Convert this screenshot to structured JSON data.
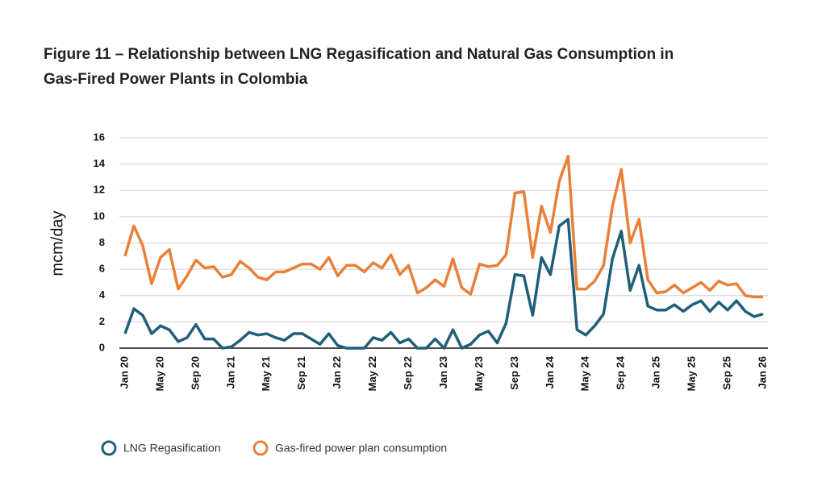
{
  "chart_data": {
    "type": "line",
    "title": "Figure 11 – Relationship between LNG Regasification and Natural Gas Consumption in Gas-Fired Power Plants in Colombia",
    "y_label": "mcm/day",
    "categories": [
      "Jan 20",
      null,
      null,
      null,
      "May 20",
      null,
      null,
      null,
      "Sep 20",
      null,
      null,
      null,
      "Jan 21",
      null,
      null,
      null,
      "May 21",
      null,
      null,
      null,
      "Sep 21",
      null,
      null,
      null,
      "Jan 22",
      null,
      null,
      null,
      "May 22",
      null,
      null,
      null,
      "Sep 22",
      null,
      null,
      null,
      "Jan 23",
      null,
      null,
      null,
      "May 23",
      null,
      null,
      null,
      "Sep 23",
      null,
      null,
      null,
      "Jan 24",
      null,
      null,
      null,
      "May 24",
      null,
      null,
      null,
      "Sep 24",
      null,
      null,
      null,
      "Jan 25",
      null,
      null,
      null,
      "May 25",
      null,
      null,
      null,
      "Sep 25",
      null,
      null,
      null,
      "Jan 26"
    ],
    "series": [
      {
        "name": "LNG Regasification",
        "color": "#1f5f7a",
        "values": [
          1.1,
          3.0,
          2.5,
          1.1,
          1.7,
          1.4,
          0.5,
          0.8,
          1.8,
          0.7,
          0.7,
          0.0,
          0.1,
          0.6,
          1.2,
          1.0,
          1.1,
          0.8,
          0.6,
          1.1,
          1.1,
          0.7,
          0.3,
          1.1,
          0.2,
          0.0,
          0.0,
          0.0,
          0.8,
          0.6,
          1.2,
          0.4,
          0.7,
          0.0,
          0.0,
          0.7,
          0.0,
          1.4,
          0.0,
          0.3,
          1.0,
          1.3,
          0.4,
          1.9,
          5.6,
          5.5,
          2.5,
          6.9,
          5.6,
          9.3,
          9.8,
          1.4,
          1.0,
          1.7,
          2.6,
          6.8,
          8.9,
          4.4,
          6.3,
          3.2,
          2.9,
          2.9,
          3.3,
          2.8,
          3.3,
          3.6,
          2.8,
          3.5,
          2.9,
          3.6,
          2.8,
          2.4,
          2.6
        ]
      },
      {
        "name": "Gas-fired power plan consumption",
        "color": "#e8803a",
        "values": [
          7.0,
          9.3,
          7.8,
          4.9,
          6.9,
          7.5,
          4.5,
          5.5,
          6.7,
          6.1,
          6.2,
          5.4,
          5.6,
          6.6,
          6.1,
          5.4,
          5.2,
          5.8,
          5.8,
          6.1,
          6.4,
          6.4,
          6.0,
          6.9,
          5.5,
          6.3,
          6.3,
          5.8,
          6.5,
          6.1,
          7.1,
          5.6,
          6.3,
          4.2,
          4.6,
          5.2,
          4.7,
          6.8,
          4.6,
          4.1,
          6.4,
          6.2,
          6.3,
          7.1,
          11.8,
          11.9,
          6.9,
          10.8,
          8.8,
          12.7,
          14.6,
          4.5,
          4.5,
          5.1,
          6.3,
          10.8,
          13.6,
          8.0,
          9.8,
          5.2,
          4.2,
          4.3,
          4.8,
          4.2,
          4.6,
          5.0,
          4.4,
          5.1,
          4.8,
          4.9,
          4.0,
          3.9,
          3.9
        ]
      }
    ],
    "ylim": [
      0,
      16
    ],
    "yticks": [
      0,
      2,
      4,
      6,
      8,
      10,
      12,
      14,
      16
    ],
    "grid": true
  }
}
